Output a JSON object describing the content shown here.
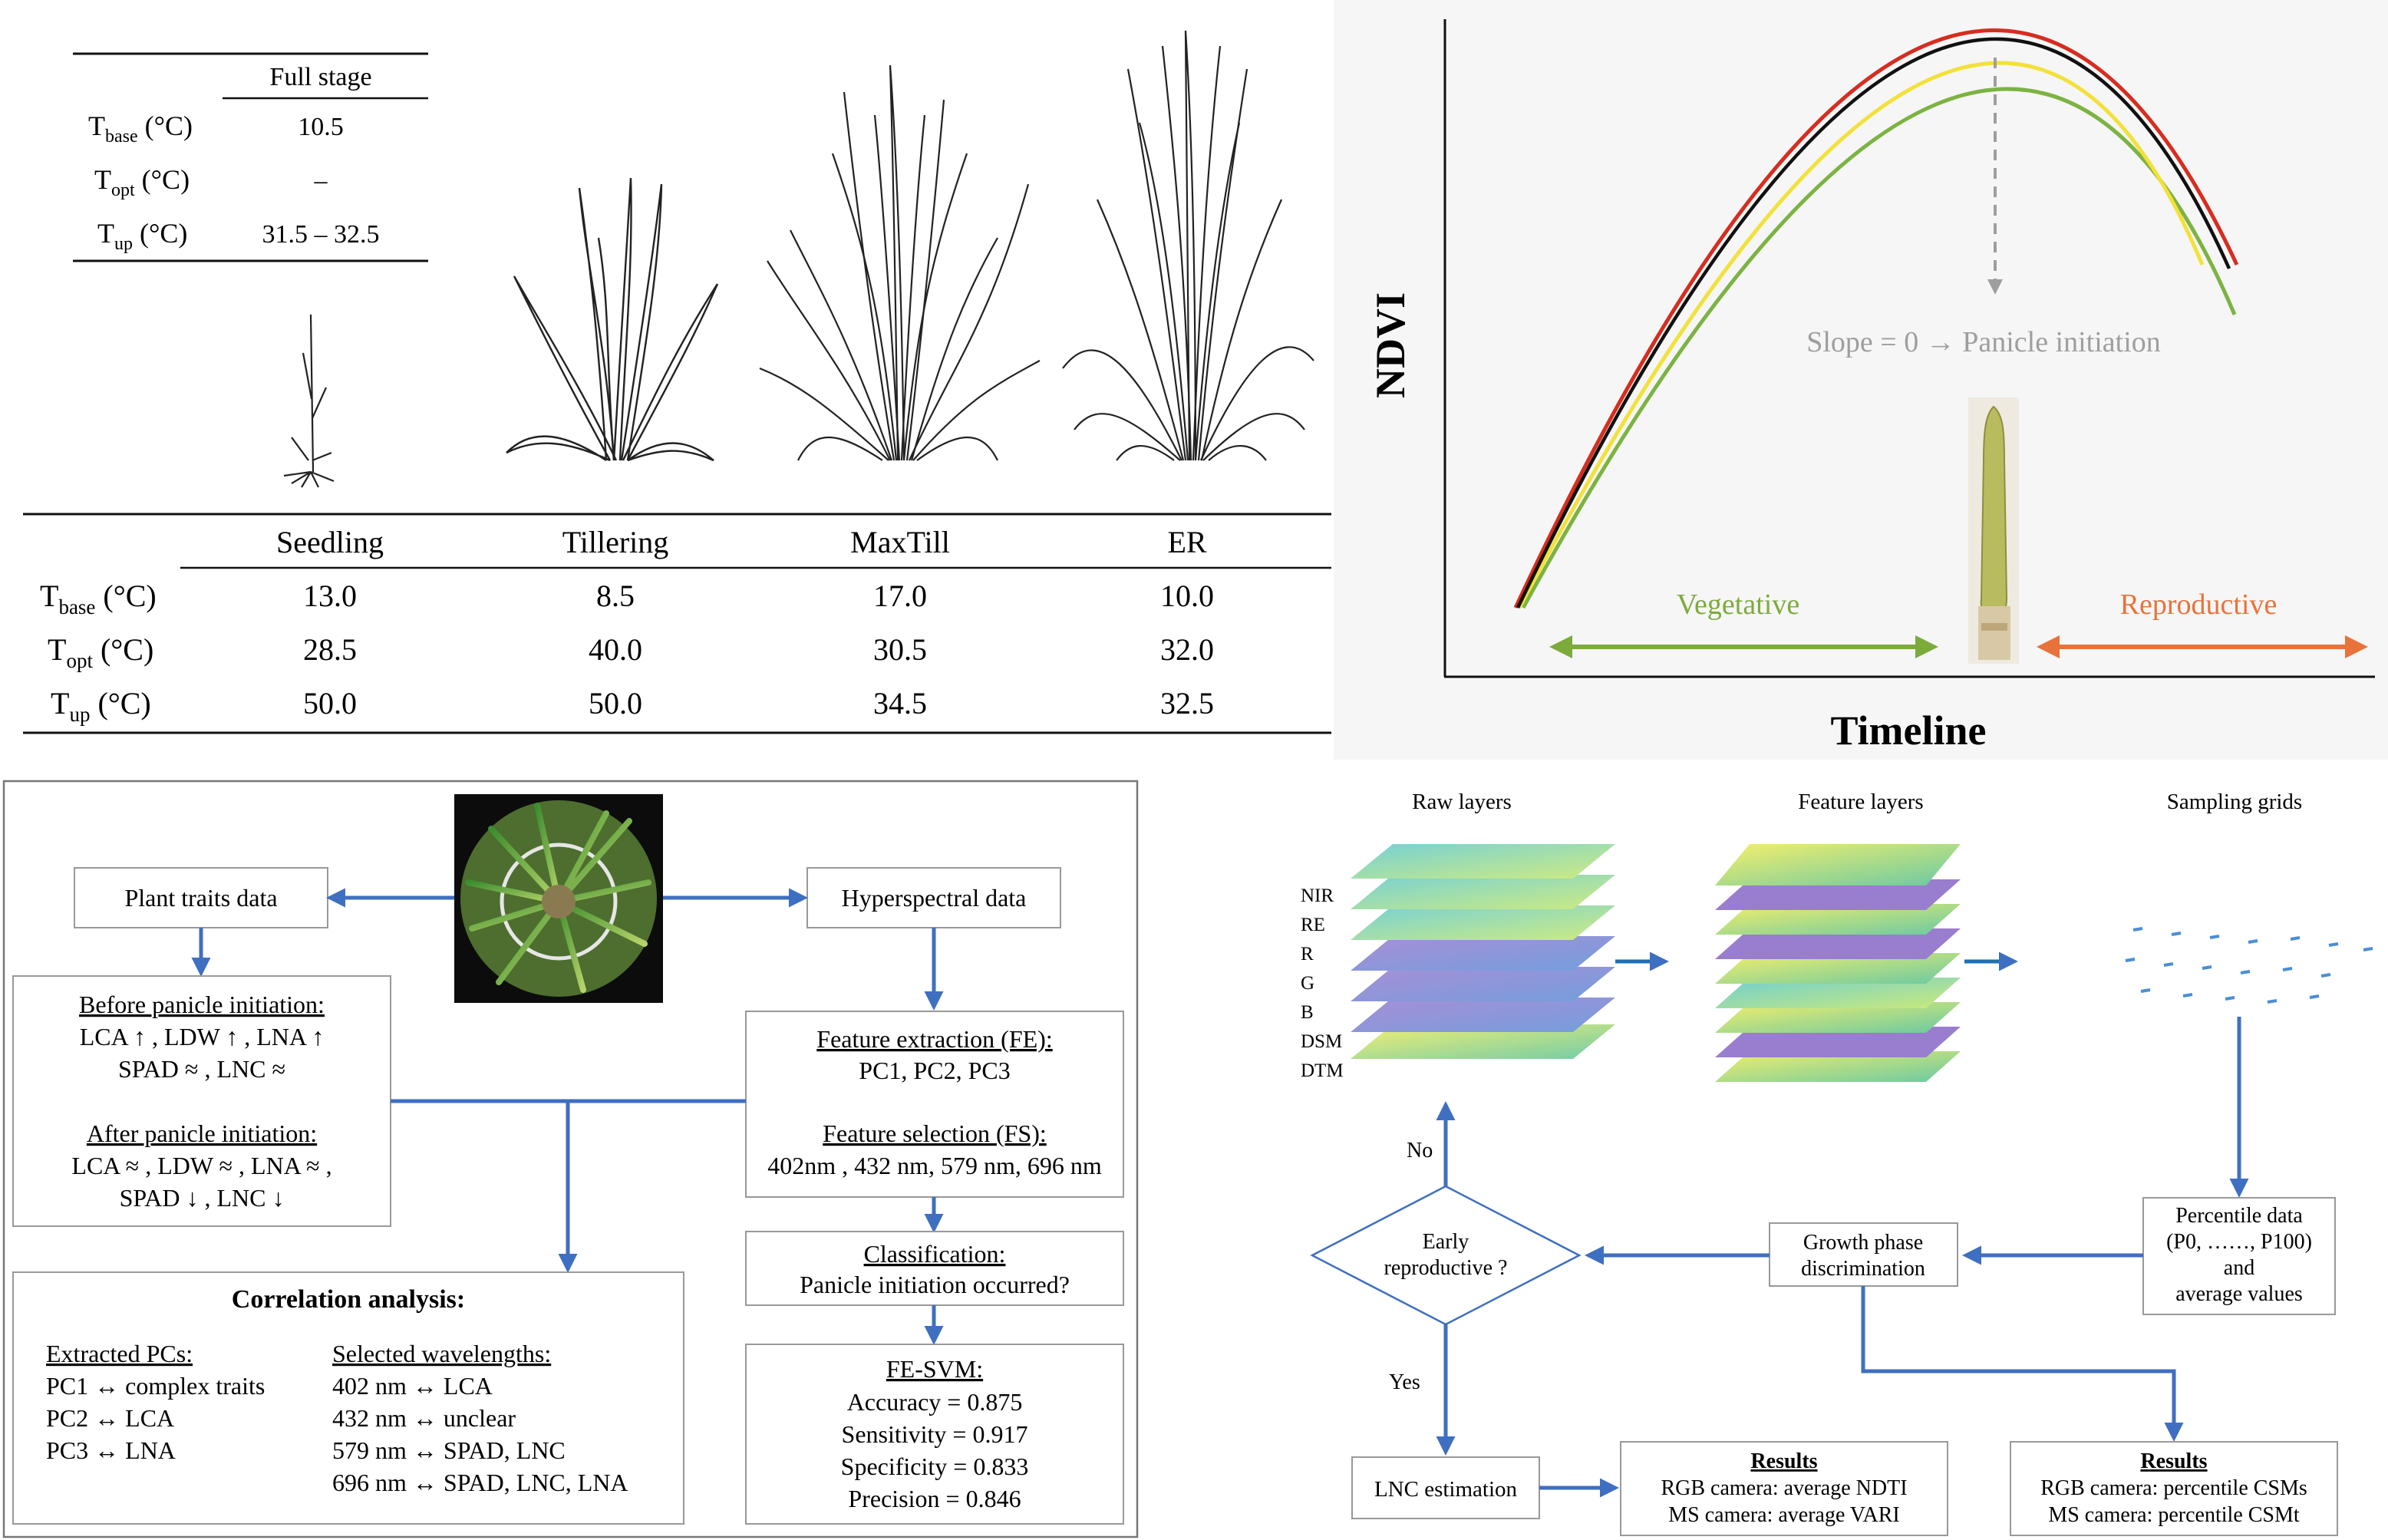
{
  "top_left": {
    "full_stage_table": {
      "header": "Full stage",
      "rows": [
        {
          "param": "T",
          "sub": "base",
          "unit": " (°C)",
          "value": "10.5"
        },
        {
          "param": "T",
          "sub": "opt",
          "unit": " (°C)",
          "value": "–"
        },
        {
          "param": "T",
          "sub": "up",
          "unit": " (°C)",
          "value": "31.5 – 32.5"
        }
      ]
    },
    "stage_table": {
      "headers": [
        "Seedling",
        "Tillering",
        "MaxTill",
        "ER"
      ],
      "rows": [
        {
          "param": "T",
          "sub": "base",
          "unit": " (°C)",
          "values": [
            "13.0",
            "8.5",
            "17.0",
            "10.0"
          ]
        },
        {
          "param": "T",
          "sub": "opt",
          "unit": " (°C)",
          "values": [
            "28.5",
            "40.0",
            "30.5",
            "32.0"
          ]
        },
        {
          "param": "T",
          "sub": "up",
          "unit": " (°C)",
          "values": [
            "50.0",
            "50.0",
            "34.5",
            "32.5"
          ]
        }
      ]
    }
  },
  "top_right": {
    "y_label": "NDVI",
    "x_label": "Timeline",
    "annotation": "Slope = 0 → Panicle initiation",
    "vegetative": "Vegetative",
    "reproductive": "Reproductive",
    "colors": {
      "red": "#d62d20",
      "black": "#111111",
      "yellow": "#f2e13a",
      "green": "#7cb342",
      "veg": "#7cab3c",
      "rep": "#e8733a",
      "dash": "#9e9e9e"
    }
  },
  "bottom_left": {
    "plant_traits": "Plant traits data",
    "hyperspectral": "Hyperspectral data",
    "before_title": "Before panicle initiation:",
    "before_l1": "LCA ↑ , LDW ↑ , LNA ↑",
    "before_l2": "SPAD ≈ , LNC ≈",
    "after_title": "After panicle initiation:",
    "after_l1": "LCA ≈ , LDW ≈ , LNA ≈ ,",
    "after_l2": "SPAD ↓ , LNC ↓",
    "fe_title": "Feature extraction (FE):",
    "fe_text": "PC1, PC2, PC3",
    "fs_title": "Feature selection (FS):",
    "fs_text": "402nm , 432 nm, 579 nm, 696 nm",
    "class_title": "Classification:",
    "class_text": "Panicle initiation occurred?",
    "svm_title": "FE-SVM:",
    "svm_lines": [
      "Accuracy = 0.875",
      "Sensitivity = 0.917",
      "Specificity = 0.833",
      "Precision = 0.846"
    ],
    "corr_title": "Correlation analysis:",
    "pcs_title": "Extracted PCs:",
    "pcs": [
      "PC1 ↔ complex traits",
      "PC2 ↔ LCA",
      "PC3 ↔ LNA"
    ],
    "wl_title": "Selected wavelengths:",
    "wls": [
      "402 nm ↔ LCA",
      "432 nm ↔ unclear",
      "579 nm ↔ SPAD, LNC",
      "696 nm ↔ SPAD, LNC, LNA"
    ]
  },
  "bottom_right": {
    "raw_layers": "Raw layers",
    "feature_layers": "Feature layers",
    "sampling_grids": "Sampling grids",
    "layer_labels": [
      "NIR",
      "RE",
      "R",
      "G",
      "B",
      "DSM",
      "DTM"
    ],
    "no": "No",
    "yes": "Yes",
    "early_l1": "Early",
    "early_l2": "reproductive ?",
    "growth_l1": "Growth phase",
    "growth_l2": "discrimination",
    "percentile": [
      "Percentile data",
      "(P0, ……, P100)",
      "and",
      "average values"
    ],
    "lnc": "LNC estimation",
    "results_title": "Results",
    "results1": [
      "RGB camera: average NDTI",
      "MS camera: average VARI"
    ],
    "results2": [
      "RGB camera: percentile CSMs",
      "MS camera: percentile CSMt"
    ],
    "arrow_color": "#3f6fc1"
  }
}
